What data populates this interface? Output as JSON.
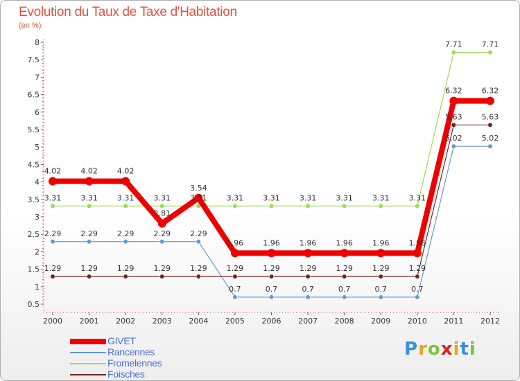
{
  "title": "Evolution du Taux de Taxe d'Habitation",
  "subtitle": "(en %)",
  "chart_data": {
    "type": "line",
    "title": "Evolution du Taux de Taxe d'Habitation",
    "ylabel": "(en %)",
    "xlabel": "",
    "x": [
      "2000",
      "2001",
      "2002",
      "2003",
      "2004",
      "2005",
      "2006",
      "2007",
      "2008",
      "2009",
      "2010",
      "2011",
      "2012"
    ],
    "ylim": [
      0.5,
      8
    ],
    "yticks": [
      "0.5",
      "1",
      "1.5",
      "2",
      "2.5",
      "3",
      "3.5",
      "4",
      "4.5",
      "5",
      "5.5",
      "6",
      "6.5",
      "7",
      "7.5",
      "8"
    ],
    "legend_position": "bottom-left",
    "series": [
      {
        "name": "Fromelennes",
        "color": "#99dd55",
        "width": 1.2,
        "values": [
          3.31,
          3.31,
          3.31,
          3.31,
          3.31,
          3.31,
          3.31,
          3.31,
          3.31,
          3.31,
          3.31,
          7.71,
          7.71
        ],
        "labels": [
          "3.31",
          "3.31",
          "3.31",
          "3.31",
          "3.31",
          "3.31",
          "3.31",
          "3.31",
          "3.31",
          "3.31",
          "3.31",
          "7.71",
          "7.71"
        ]
      },
      {
        "name": "Rancennes",
        "color": "#6699cc",
        "width": 1.2,
        "values": [
          2.29,
          2.29,
          2.29,
          2.29,
          2.29,
          0.7,
          0.7,
          0.7,
          0.7,
          0.7,
          0.7,
          5.02,
          5.02
        ],
        "labels": [
          "2.29",
          "2.29",
          "2.29",
          "2.29",
          "2.29",
          "0.7",
          "0.7",
          "0.7",
          "0.7",
          "0.7",
          "0.7",
          "5.02",
          "5.02"
        ]
      },
      {
        "name": "Foisches",
        "color": "#772222",
        "width": 1.2,
        "values": [
          1.29,
          1.29,
          1.29,
          1.29,
          1.29,
          1.29,
          1.29,
          1.29,
          1.29,
          1.29,
          1.29,
          5.63,
          5.63
        ],
        "labels": [
          "1.29",
          "1.29",
          "1.29",
          "1.29",
          "1.29",
          "1.29",
          "1.29",
          "1.29",
          "1.29",
          "1.29",
          "1.29",
          "5.63",
          "5.63"
        ]
      },
      {
        "name": "GIVET",
        "color": "#ee0000",
        "width": 8,
        "values": [
          4.02,
          4.02,
          4.02,
          2.81,
          3.54,
          1.96,
          1.96,
          1.96,
          1.96,
          1.96,
          1.96,
          6.32,
          6.32
        ],
        "labels": [
          "4.02",
          "4.02",
          "4.02",
          "2.81",
          "3.54",
          "1.96",
          "1.96",
          "1.96",
          "1.96",
          "1.96",
          "1.96",
          "6.32",
          "6.32"
        ]
      }
    ]
  },
  "legend": [
    {
      "name": "GIVET",
      "color": "#ee0000"
    },
    {
      "name": "Rancennes",
      "color": "#6699cc"
    },
    {
      "name": "Fromelennes",
      "color": "#99dd55"
    },
    {
      "name": "Foisches",
      "color": "#772222"
    }
  ],
  "brand": {
    "letters": [
      "P",
      "r",
      "o",
      "x",
      "i",
      "t",
      "i"
    ],
    "colors": [
      "#3a8fd8",
      "#f0a020",
      "#7cc440",
      "#e02020",
      "#f0a020",
      "#3a8fd8",
      "#7cc440"
    ]
  }
}
